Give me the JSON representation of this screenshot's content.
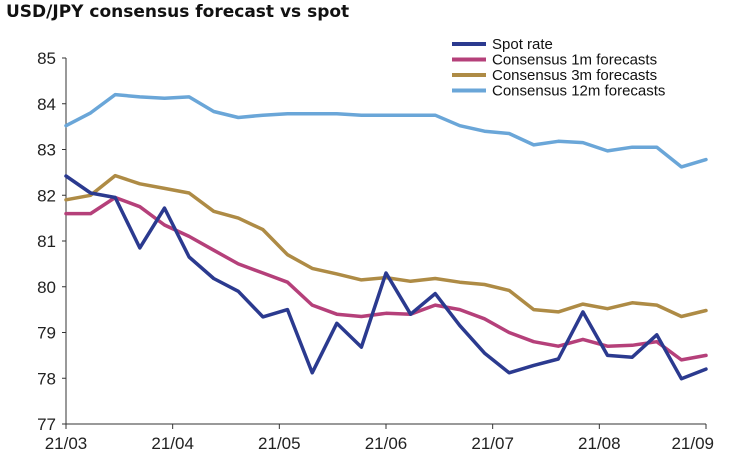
{
  "chart_data": {
    "type": "line",
    "title": "USD/JPY consensus forecast vs spot",
    "xlabel": "",
    "ylabel": "",
    "ylim": [
      77,
      85
    ],
    "y_ticks": [
      "77",
      "78",
      "79",
      "80",
      "81",
      "82",
      "83",
      "84",
      "85"
    ],
    "x_ticks": [
      "21/03",
      "21/04",
      "21/05",
      "21/06",
      "21/07",
      "21/08",
      "21/09"
    ],
    "grid": false,
    "legend_position": "top-right",
    "series": [
      {
        "name": "Spot rate",
        "color": "#2b3a8f",
        "values": [
          82.42,
          82.05,
          81.95,
          80.85,
          81.72,
          80.65,
          80.18,
          79.9,
          79.34,
          79.5,
          78.12,
          79.2,
          78.68,
          80.3,
          79.4,
          79.85,
          79.15,
          78.55,
          78.12,
          78.28,
          78.42,
          79.45,
          78.5,
          78.46,
          78.95,
          77.99,
          78.2
        ]
      },
      {
        "name": "Consensus 1m forecasts",
        "color": "#b5407a",
        "values": [
          81.6,
          81.6,
          81.95,
          81.75,
          81.35,
          81.1,
          80.8,
          80.5,
          80.3,
          80.1,
          79.6,
          79.4,
          79.35,
          79.42,
          79.4,
          79.6,
          79.5,
          79.3,
          79.0,
          78.8,
          78.7,
          78.85,
          78.7,
          78.72,
          78.8,
          78.4,
          78.5
        ]
      },
      {
        "name": "Consensus 3m forecasts",
        "color": "#ae8b45",
        "values": [
          81.9,
          82.0,
          82.43,
          82.25,
          82.15,
          82.05,
          81.65,
          81.5,
          81.25,
          80.7,
          80.4,
          80.28,
          80.15,
          80.2,
          80.12,
          80.18,
          80.1,
          80.05,
          79.92,
          79.5,
          79.45,
          79.62,
          79.52,
          79.65,
          79.6,
          79.35,
          79.48
        ]
      },
      {
        "name": "Consensus 12m forecasts",
        "color": "#6aa6d8",
        "values": [
          83.52,
          83.8,
          84.2,
          84.15,
          84.12,
          84.15,
          83.83,
          83.7,
          83.75,
          83.78,
          83.78,
          83.78,
          83.75,
          83.75,
          83.75,
          83.75,
          83.52,
          83.4,
          83.35,
          83.1,
          83.18,
          83.15,
          82.97,
          83.05,
          83.05,
          82.62,
          82.78
        ]
      }
    ]
  }
}
